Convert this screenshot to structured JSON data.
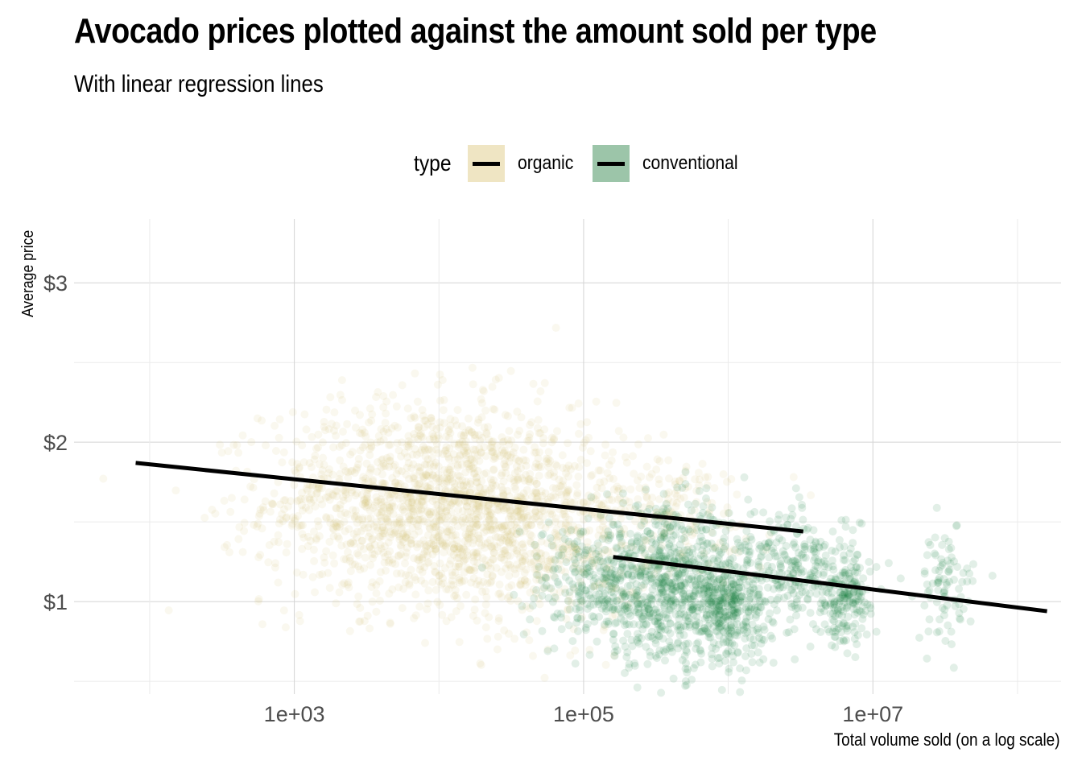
{
  "chart_data": {
    "type": "scatter",
    "title": "Avocado prices plotted against the amount sold per type",
    "subtitle": "With linear regression lines",
    "xlabel": "Total volume sold (on a log scale)",
    "ylabel": "Average price",
    "x_scale": "log10",
    "xlim": [
      30,
      200000000
    ],
    "ylim": [
      0.42,
      3.4
    ],
    "x_ticks": [
      {
        "value": 1000,
        "label": "1e+03"
      },
      {
        "value": 100000,
        "label": "1e+05"
      },
      {
        "value": 10000000,
        "label": "1e+07"
      }
    ],
    "x_minor_ticks": [
      100,
      10000,
      1000000,
      100000000
    ],
    "y_ticks": [
      {
        "value": 1,
        "label": "$1"
      },
      {
        "value": 2,
        "label": "$2"
      },
      {
        "value": 3,
        "label": "$3"
      }
    ],
    "y_minor_ticks": [
      0.5,
      1.5,
      2.5
    ],
    "grid": true,
    "legend": {
      "title": "type",
      "position": "top",
      "entries": [
        {
          "label": "organic",
          "fill": "#EFE5C3"
        },
        {
          "label": "conventional",
          "fill": "#9CC5A9"
        }
      ]
    },
    "series": [
      {
        "name": "organic",
        "color": "#D9C77A",
        "point_alpha": 0.12,
        "clusters": [
          {
            "log10x_center": 3.9,
            "log10x_sd": 0.55,
            "y_center": 1.62,
            "y_sd": 0.32,
            "n": 1500
          },
          {
            "log10x_center": 4.7,
            "log10x_sd": 0.35,
            "y_center": 1.45,
            "y_sd": 0.32,
            "n": 500
          },
          {
            "log10x_center": 5.6,
            "log10x_sd": 0.35,
            "y_center": 1.55,
            "y_sd": 0.2,
            "n": 180
          }
        ],
        "regression": {
          "x": [
            80,
            3300000
          ],
          "y": [
            1.87,
            1.44
          ]
        }
      },
      {
        "name": "conventional",
        "color": "#137C3A",
        "point_alpha": 0.12,
        "clusters": [
          {
            "log10x_center": 5.1,
            "log10x_sd": 0.25,
            "y_center": 1.12,
            "y_sd": 0.2,
            "n": 250
          },
          {
            "log10x_center": 5.6,
            "log10x_sd": 0.28,
            "y_center": 1.1,
            "y_sd": 0.24,
            "n": 750
          },
          {
            "log10x_center": 6.0,
            "log10x_sd": 0.12,
            "y_center": 0.95,
            "y_sd": 0.16,
            "n": 300
          },
          {
            "log10x_center": 6.5,
            "log10x_sd": 0.2,
            "y_center": 1.17,
            "y_sd": 0.2,
            "n": 300
          },
          {
            "log10x_center": 6.82,
            "log10x_sd": 0.08,
            "y_center": 1.0,
            "y_sd": 0.14,
            "n": 160
          },
          {
            "log10x_center": 7.5,
            "log10x_sd": 0.1,
            "y_center": 1.1,
            "y_sd": 0.18,
            "n": 90
          }
        ],
        "regression": {
          "x": [
            160000,
            160000000
          ],
          "y": [
            1.28,
            0.94
          ]
        }
      }
    ]
  }
}
